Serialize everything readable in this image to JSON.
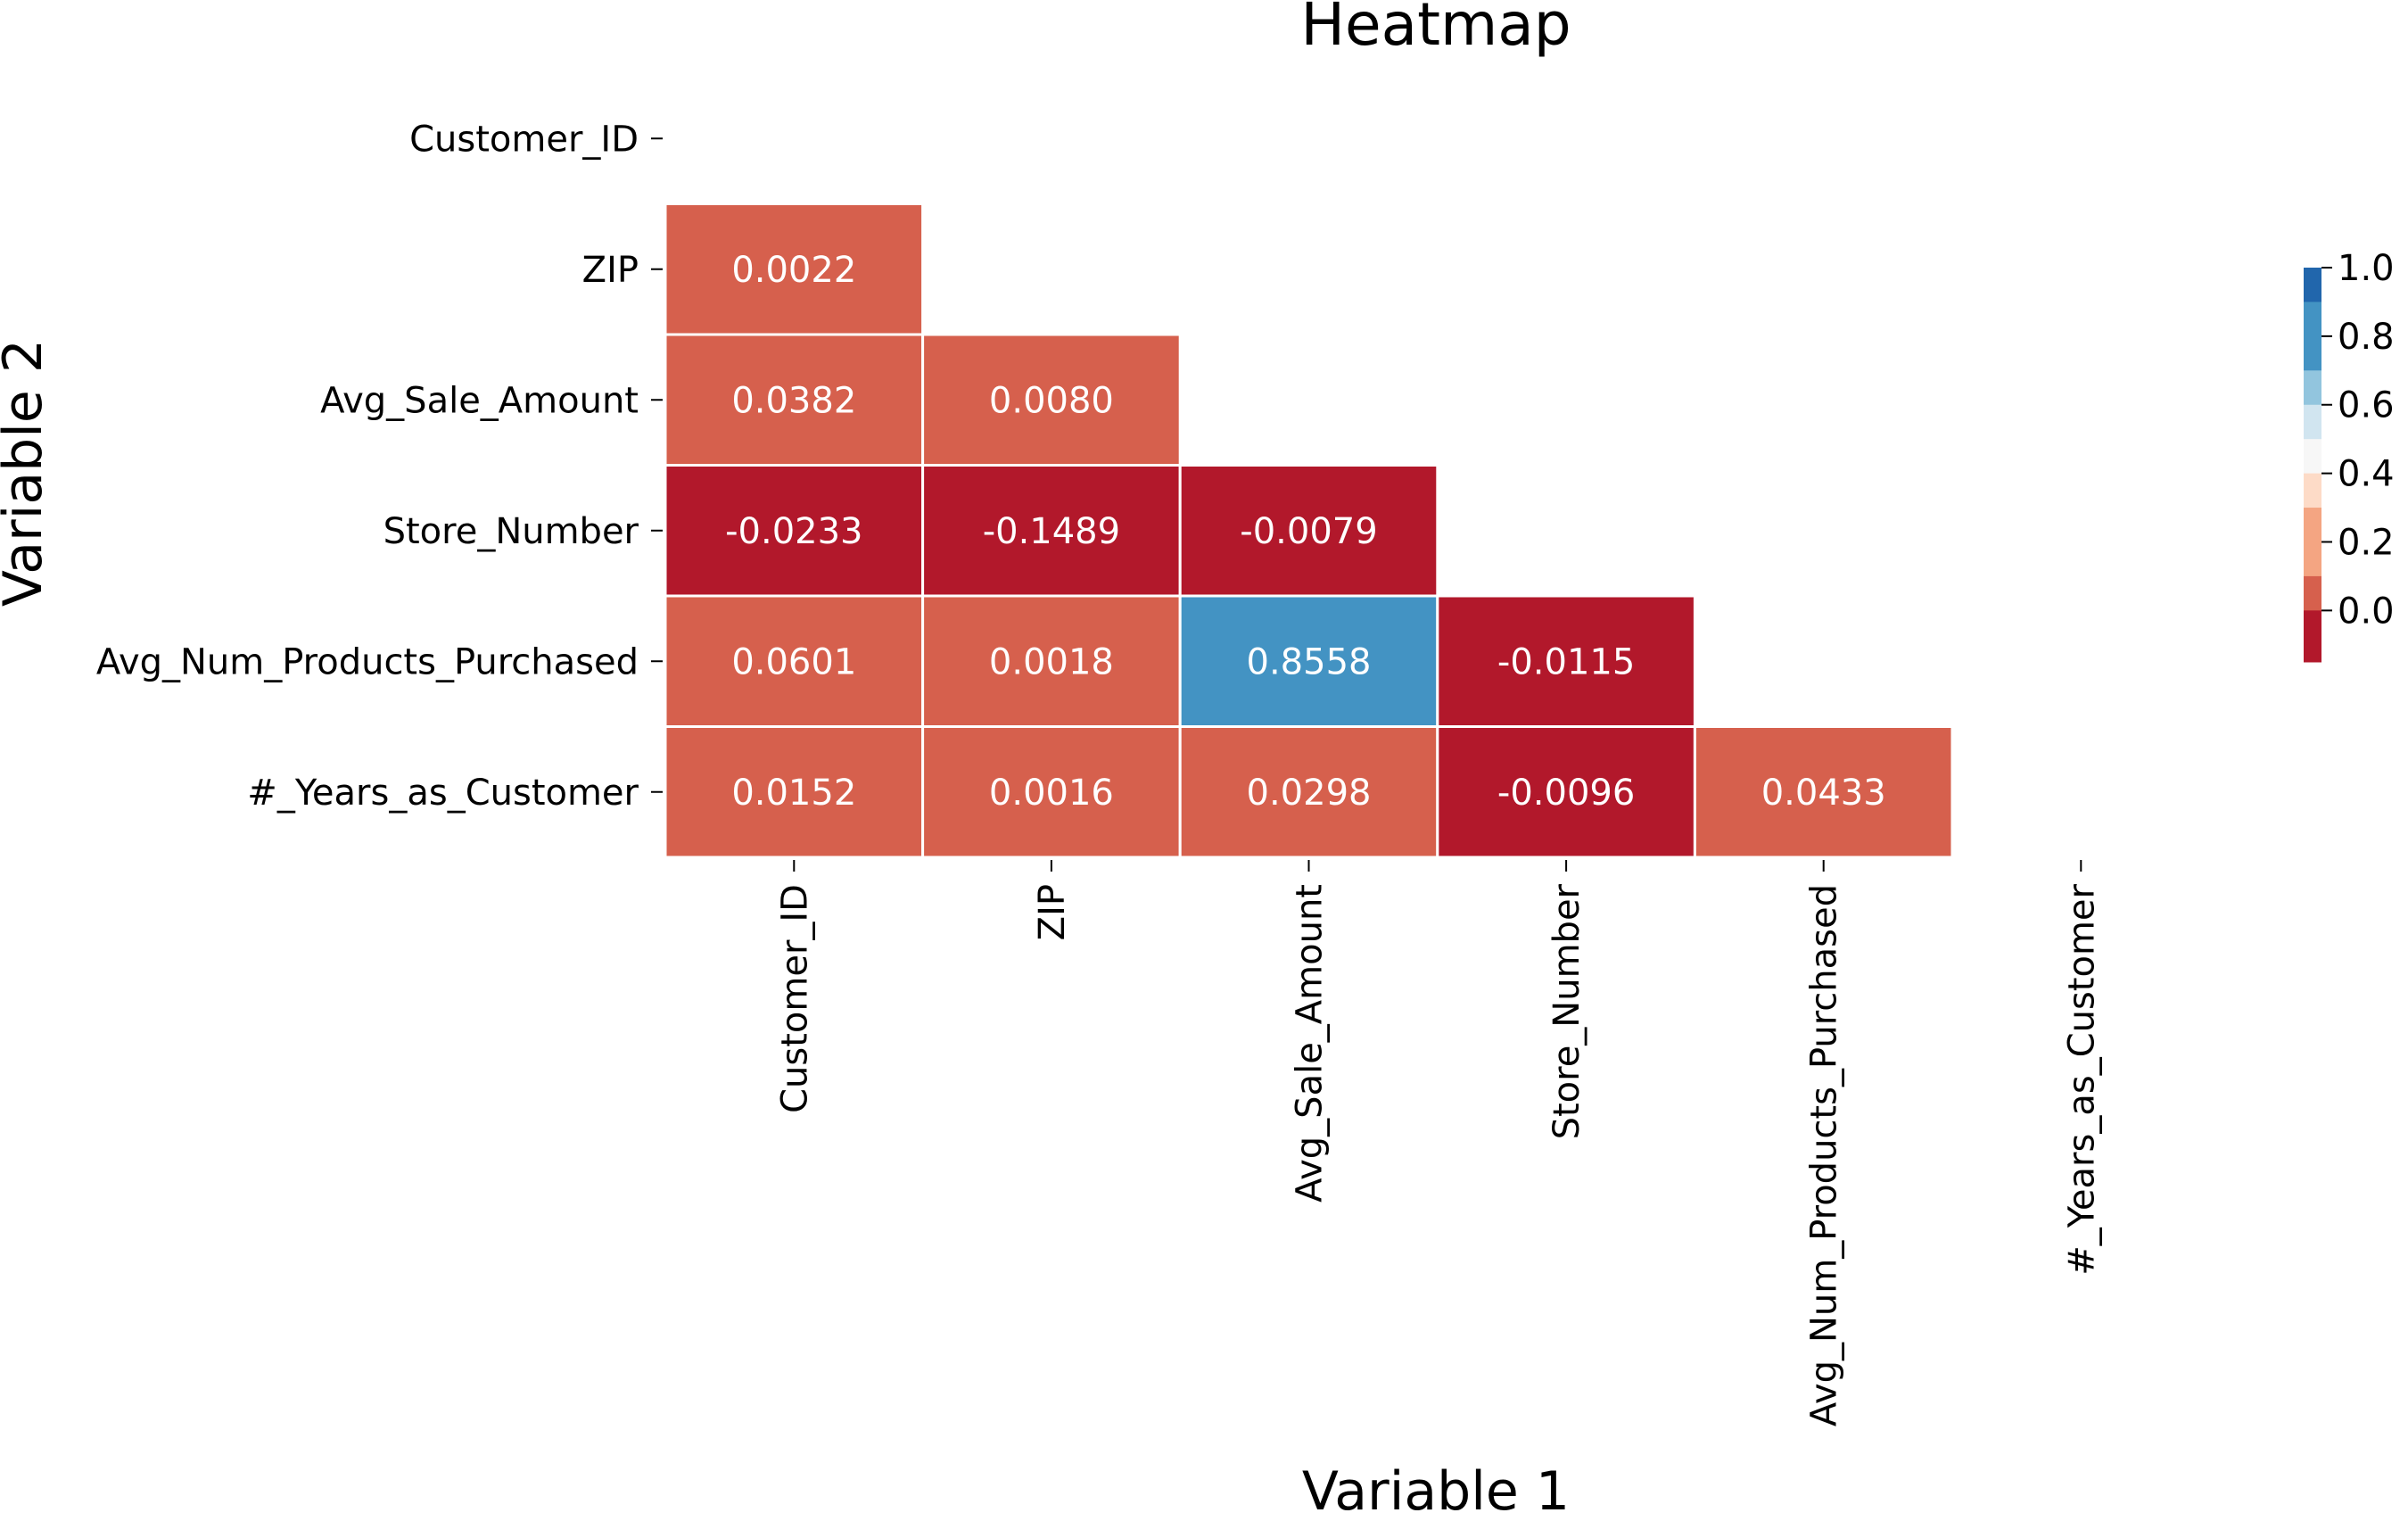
{
  "chart_data": {
    "type": "heatmap",
    "title": "Heatmap",
    "xlabel": "Variable 1",
    "ylabel": "Variable 2",
    "variables": [
      "Customer_ID",
      "ZIP",
      "Avg_Sale_Amount",
      "Store_Number",
      "Avg_Num_Products_Purchased",
      "#_Years_as_Customer"
    ],
    "mask": "upper-triangle-and-diagonal",
    "matrix": [
      [
        null,
        null,
        null,
        null,
        null,
        null
      ],
      [
        "0.0022",
        null,
        null,
        null,
        null,
        null
      ],
      [
        "0.0382",
        "0.0080",
        null,
        null,
        null,
        null
      ],
      [
        "-0.0233",
        "-0.1489",
        "-0.0079",
        null,
        null,
        null
      ],
      [
        "0.0601",
        "0.0018",
        "0.8558",
        "-0.0115",
        null,
        null
      ],
      [
        "0.0152",
        "0.0016",
        "0.0298",
        "-0.0096",
        "0.0433",
        null
      ]
    ],
    "colorbar": {
      "ticks": [
        "1.0",
        "0.8",
        "0.6",
        "0.4",
        "0.2",
        "0.0"
      ],
      "levels": [
        {
          "min": 0.9,
          "max": 1.0,
          "color": "#2166ac"
        },
        {
          "min": 0.7,
          "max": 0.9,
          "color": "#4393c3"
        },
        {
          "min": 0.6,
          "max": 0.7,
          "color": "#92c5de"
        },
        {
          "min": 0.5,
          "max": 0.6,
          "color": "#d1e5f0"
        },
        {
          "min": 0.4,
          "max": 0.5,
          "color": "#f7f7f7"
        },
        {
          "min": 0.3,
          "max": 0.4,
          "color": "#fddbc7"
        },
        {
          "min": 0.1,
          "max": 0.3,
          "color": "#f4a582"
        },
        {
          "min": 0.0,
          "max": 0.1,
          "color": "#d6604d"
        },
        {
          "min": -0.15,
          "max": 0.0,
          "color": "#b2182b"
        }
      ],
      "range": [
        -0.15,
        1.0
      ]
    },
    "cell_text_color": "#ffffff",
    "grid_line_color": "#ffffff"
  }
}
